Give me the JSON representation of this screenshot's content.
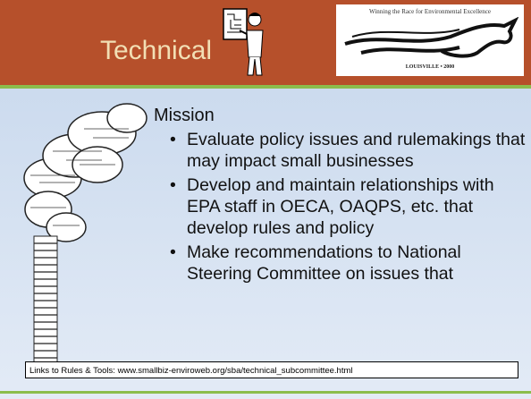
{
  "header": {
    "title": "Technical"
  },
  "logo": {
    "tagline": "Winning the Race for Environmental Excellence",
    "location": "LOUISVILLE • 2000"
  },
  "content": {
    "heading": "Mission",
    "bullets": [
      "Evaluate policy issues and rulemakings that may impact small businesses",
      "Develop and maintain relationships with EPA staff in OECA, OAQPS, etc. that develop rules and policy",
      "Make recommendations to National Steering Committee on issues that"
    ]
  },
  "footer": {
    "link": "Links to Rules  & Tools: www.smallbiz-enviroweb.org/sba/technical_subcommittee.html"
  }
}
